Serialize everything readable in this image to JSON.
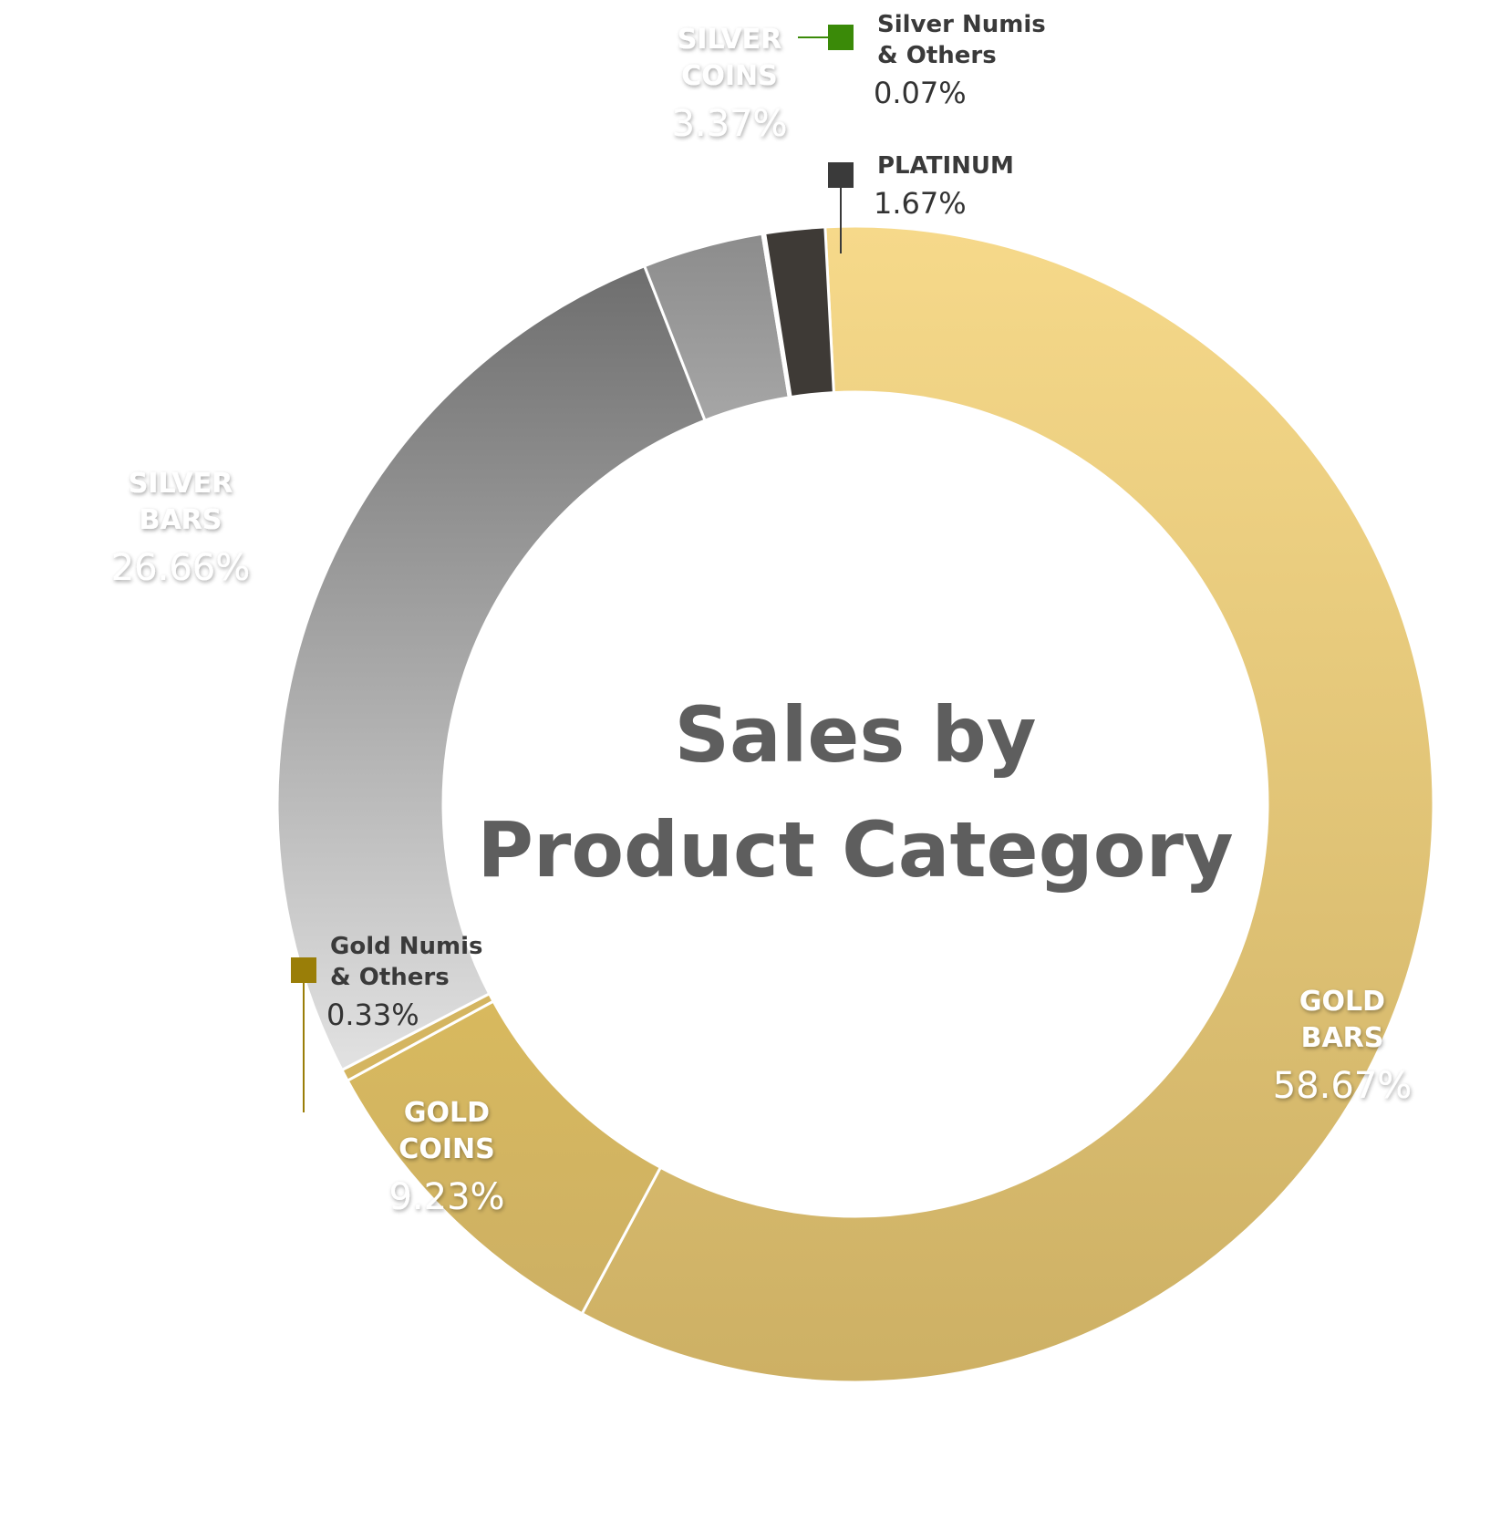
{
  "chart_data": {
    "type": "donut",
    "title_lines": [
      "Sales by",
      "Product Category"
    ],
    "slices": [
      {
        "key": "gold_bars",
        "label_lines": [
          "GOLD",
          "BARS"
        ],
        "value": 58.67,
        "value_text": "58.67%",
        "color_top": "#f6d98a",
        "color_bottom": "#cdb064",
        "label_style": "inside"
      },
      {
        "key": "gold_coins",
        "label_lines": [
          "GOLD",
          "COINS"
        ],
        "value": 9.23,
        "value_text": "9.23%",
        "color_top": "#d8b95e",
        "color_bottom": "#cdb064",
        "label_style": "inside"
      },
      {
        "key": "gold_numis",
        "label_lines": [
          "Gold Numis",
          "& Others"
        ],
        "value": 0.33,
        "value_text": "0.33%",
        "color_top": "#d4b560",
        "color_bottom": "#d4b560",
        "marker_color": "#9a7e08",
        "label_style": "callout"
      },
      {
        "key": "silver_bars",
        "label_lines": [
          "SILVER",
          "BARS"
        ],
        "value": 26.66,
        "value_text": "26.66%",
        "color_top": "#6e6e6e",
        "color_bottom": "#e2e2e2",
        "label_style": "inside"
      },
      {
        "key": "silver_coins",
        "label_lines": [
          "SILVER",
          "COINS"
        ],
        "value": 3.37,
        "value_text": "3.37%",
        "color_top": "#8c8c8c",
        "color_bottom": "#a6a6a6",
        "label_style": "inside"
      },
      {
        "key": "silver_numis",
        "label_lines": [
          "Silver Numis",
          "& Others"
        ],
        "value": 0.07,
        "value_text": "0.07%",
        "color_top": "#3a8a08",
        "color_bottom": "#3a8a08",
        "marker_color": "#3a8a08",
        "label_style": "callout"
      },
      {
        "key": "platinum",
        "label_lines": [
          "PLATINUM"
        ],
        "value": 1.67,
        "value_text": "1.67%",
        "color_top": "#3e3a36",
        "color_bottom": "#3e3a36",
        "marker_color": "#3a3a3a",
        "label_style": "callout"
      }
    ],
    "colors": {
      "title": "#5e5e5e",
      "separator": "#ffffff"
    }
  }
}
